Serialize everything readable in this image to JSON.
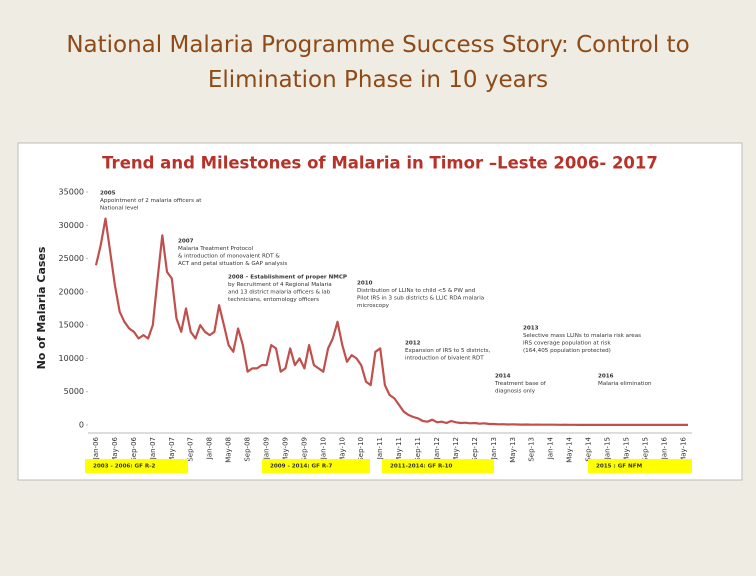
{
  "title": "National Malaria Programme Success Story: Control to Elimination Phase in 10 years",
  "chart_data": {
    "type": "line",
    "title": "Trend and Milestones of Malaria in Timor –Leste 2006-  2017",
    "y_label": "No of Malaria Cases",
    "categories": [
      "Jan-06",
      null,
      null,
      null,
      "May-06",
      null,
      null,
      null,
      "Sep-06",
      null,
      null,
      null,
      "Jan-07",
      null,
      null,
      null,
      "May-07",
      null,
      null,
      null,
      "Sep-07",
      null,
      null,
      null,
      "Jan-08",
      null,
      null,
      null,
      "May-08",
      null,
      null,
      null,
      "Sep-08",
      null,
      null,
      null,
      "Jan-09",
      null,
      null,
      null,
      "May-09",
      null,
      null,
      null,
      "Sep-09",
      null,
      null,
      null,
      "Jan-10",
      null,
      null,
      null,
      "May-10",
      null,
      null,
      null,
      "Sep-10",
      null,
      null,
      null,
      "Jan-11",
      null,
      null,
      null,
      "May-11",
      null,
      null,
      null,
      "Sep-11",
      null,
      null,
      null,
      "Jan-12",
      null,
      null,
      null,
      "May-12",
      null,
      null,
      null,
      "Sep-12",
      null,
      null,
      null,
      "Jan-13",
      null,
      null,
      null,
      "May-13",
      null,
      null,
      null,
      "Sep-13",
      null,
      null,
      null,
      "Jan-14",
      null,
      null,
      null,
      "May-14",
      null,
      null,
      null,
      "Sep-14",
      null,
      null,
      null,
      "Jan-15",
      null,
      null,
      null,
      "May-15",
      null,
      null,
      null,
      "Sep-15",
      null,
      null,
      null,
      "Jan-16",
      null,
      null,
      null,
      "May-16",
      null
    ],
    "series": [
      {
        "color": "#c0504d",
        "values": [
          24000,
          27000,
          31000,
          26000,
          21000,
          17000,
          15500,
          14500,
          14000,
          13000,
          13500,
          13000,
          15000,
          22000,
          28500,
          23000,
          22000,
          16000,
          14000,
          17500,
          14000,
          13000,
          15000,
          14000,
          13500,
          14000,
          18000,
          15000,
          12000,
          11000,
          14500,
          12000,
          8000,
          8500,
          8500,
          9000,
          9000,
          12000,
          11500,
          8000,
          8500,
          11500,
          9000,
          10000,
          8500,
          12000,
          9000,
          8500,
          8000,
          11500,
          13000,
          15500,
          12000,
          9500,
          10500,
          10000,
          9000,
          6500,
          6000,
          11000,
          11500,
          6000,
          4500,
          4000,
          3000,
          2000,
          1500,
          1200,
          1000,
          600,
          500,
          800,
          400,
          500,
          300,
          600,
          400,
          300,
          350,
          250,
          300,
          200,
          250,
          150,
          150,
          100,
          120,
          80,
          100,
          70,
          60,
          80,
          50,
          60,
          40,
          50,
          40,
          50,
          30,
          40,
          30,
          30,
          20,
          30,
          20,
          20,
          20,
          30,
          20,
          20,
          10,
          20,
          10,
          10,
          10,
          20,
          10,
          10,
          10,
          10,
          10,
          10,
          10,
          10,
          10,
          10
        ]
      }
    ],
    "ylim": [
      0,
      35000
    ],
    "yticks": [
      0,
      5000,
      10000,
      15000,
      20000,
      25000,
      30000,
      35000
    ],
    "annotations": [
      [
        "2005",
        "Appointment of 2 malaria officers at",
        "National level"
      ],
      [
        "2007",
        "Malaria Treatment Protocol",
        "& introduction of monovalent RDT &",
        "ACT and petal situation & GAP analysis"
      ],
      [
        "2008 – Establishment of proper NMCP",
        "by Recruitment of 4 Regional Malaria",
        "and 13 district malaria officers & lab",
        "technicians, entomology officers"
      ],
      [
        "2010",
        "Distribution of LLINs to child <5 & PW and",
        "Pilot IRS in 3 sub districts & LLIC RDA malaria",
        "microscopy"
      ],
      [
        "2012",
        "Expansion of IRS to 5 districts,",
        "introduction of bivalent RDT"
      ],
      [
        "2013",
        "Selective mass LLINs to malaria risk areas",
        "IRS coverage population at risk",
        "(164,405 population protected)"
      ],
      [
        "2014",
        "Treatment base of",
        "diagnosis only"
      ],
      [
        "2016",
        "Malaria elimination"
      ]
    ],
    "funding": [
      "2003 - 2006: GF R-2",
      "2009 - 2014: GF R-7",
      "2011-2014: GF R-10",
      "2015 : GF NFM"
    ]
  }
}
